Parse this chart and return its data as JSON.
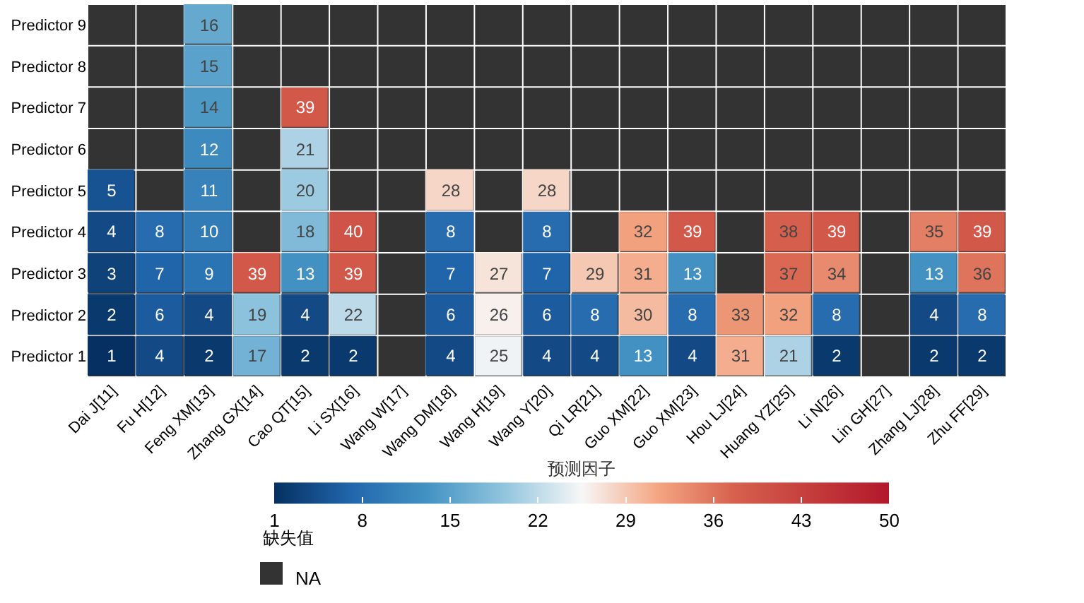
{
  "chart_data": {
    "type": "heatmap",
    "clabel": "预测因子",
    "categories": [
      "Dai J[11]",
      "Fu H[12]",
      "Feng XM[13]",
      "Zhang GX[14]",
      "Cao QT[15]",
      "Li SX[16]",
      "Wang W[17]",
      "Wang DM[18]",
      "Wang H[19]",
      "Wang Y[20]",
      "Qi LR[21]",
      "Guo XM[22]",
      "Guo XM[23]",
      "Hou LJ[24]",
      "Huang YZ[25]",
      "Li N[26]",
      "Lin GH[27]",
      "Zhang LJ[28]",
      "Zhu FF[29]"
    ],
    "y_categories": [
      "Predictor 9",
      "Predictor 8",
      "Predictor 7",
      "Predictor 6",
      "Predictor 5",
      "Predictor 4",
      "Predictor 3",
      "Predictor 2",
      "Predictor 1"
    ],
    "cells": [
      [
        null,
        null,
        16,
        null,
        null,
        null,
        null,
        null,
        null,
        null,
        null,
        null,
        null,
        null,
        null,
        null,
        null,
        null,
        null
      ],
      [
        null,
        null,
        15,
        null,
        null,
        null,
        null,
        null,
        null,
        null,
        null,
        null,
        null,
        null,
        null,
        null,
        null,
        null,
        null
      ],
      [
        null,
        null,
        14,
        null,
        39,
        null,
        null,
        null,
        null,
        null,
        null,
        null,
        null,
        null,
        null,
        null,
        null,
        null,
        null
      ],
      [
        null,
        null,
        12,
        null,
        21,
        null,
        null,
        null,
        null,
        null,
        null,
        null,
        null,
        null,
        null,
        null,
        null,
        null,
        null
      ],
      [
        5,
        null,
        11,
        null,
        20,
        null,
        null,
        28,
        null,
        28,
        null,
        null,
        null,
        null,
        null,
        null,
        null,
        null,
        null
      ],
      [
        4,
        8,
        10,
        null,
        18,
        40,
        null,
        8,
        null,
        8,
        null,
        32,
        39,
        null,
        38,
        39,
        null,
        35,
        39
      ],
      [
        3,
        7,
        9,
        39,
        13,
        39,
        null,
        7,
        27,
        7,
        29,
        31,
        13,
        null,
        37,
        34,
        null,
        13,
        36
      ],
      [
        2,
        6,
        4,
        19,
        4,
        22,
        null,
        6,
        26,
        6,
        8,
        30,
        8,
        33,
        32,
        8,
        null,
        4,
        8
      ],
      [
        1,
        4,
        2,
        17,
        2,
        2,
        null,
        4,
        25,
        4,
        4,
        13,
        4,
        31,
        21,
        2,
        null,
        2,
        2
      ]
    ],
    "data_labels": true,
    "clim": [
      1,
      50
    ],
    "cticks": [
      1,
      8,
      15,
      22,
      29,
      36,
      43,
      50
    ],
    "annotations": [
      "缺失值",
      "NA"
    ]
  }
}
